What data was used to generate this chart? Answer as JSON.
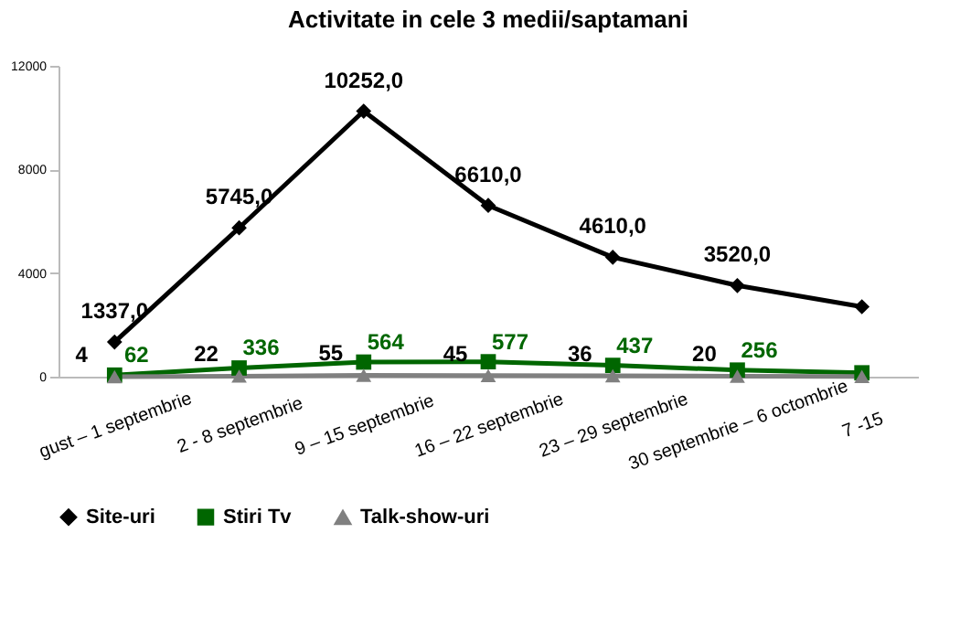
{
  "chart_data": {
    "type": "line",
    "title": "Activitate in cele 3 medii/saptamani",
    "categories": [
      "gust – 1 septembrie",
      "2 - 8 septembrie",
      "9 – 15 septembrie",
      "16 – 22 septembrie",
      "23 – 29 septembrie",
      "30 septembrie – 6 octombrie",
      "7 -15"
    ],
    "series": [
      {
        "name": "Site-uri",
        "color": "#000000",
        "marker": "diamond",
        "values": [
          1337,
          5745,
          10252,
          6610,
          4610,
          3520,
          2700
        ],
        "value_labels": [
          "1337,0",
          "5745,0",
          "10252,0",
          "6610,0",
          "4610,0",
          "3520,0",
          null
        ]
      },
      {
        "name": "Stiri Tv",
        "color": "#006600",
        "marker": "square",
        "values": [
          62,
          336,
          564,
          577,
          437,
          256,
          150
        ],
        "value_labels": [
          "62",
          "336",
          "564",
          "577",
          "437",
          "256",
          null
        ]
      },
      {
        "name": "Talk-show-uri",
        "color": "#808080",
        "marker": "triangle",
        "values": [
          4,
          22,
          55,
          45,
          36,
          20,
          10
        ],
        "value_labels": [
          "4",
          "22",
          "55",
          "45",
          "36",
          "20",
          null
        ]
      }
    ],
    "ylim": [
      0,
      12000
    ],
    "yticks": [
      0,
      {
        "value": 4000,
        "label": "4000"
      },
      {
        "value": 8000,
        "label": "8000"
      },
      {
        "value": 12000,
        "label": "12000"
      }
    ],
    "grid": false,
    "legend": "bottom"
  }
}
